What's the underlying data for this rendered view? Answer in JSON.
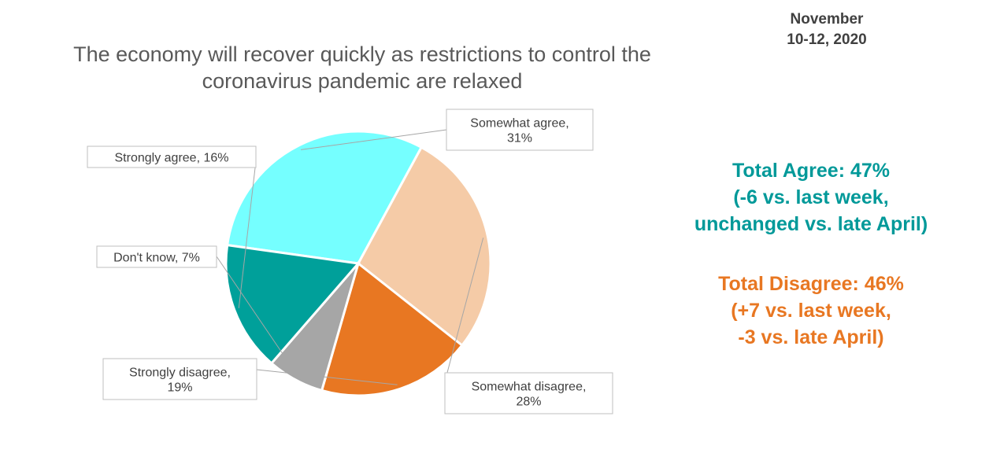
{
  "date": {
    "line1": "November",
    "line2": "10-12, 2020"
  },
  "title": {
    "line1": "The economy will recover quickly as restrictions to control the",
    "line2": "coronavirus pandemic are relaxed"
  },
  "chart_data": {
    "type": "pie",
    "slices": [
      {
        "label": "Somewhat agree",
        "value": 31,
        "color": "#75FFFF",
        "lines": [
          "Somewhat agree,",
          "31%"
        ]
      },
      {
        "label": "Somewhat disagree",
        "value": 28,
        "color": "#F5CBA7",
        "lines": [
          "Somewhat disagree,",
          "28%"
        ]
      },
      {
        "label": "Strongly disagree",
        "value": 19,
        "color": "#E87722",
        "lines": [
          "Strongly disagree,",
          "19%"
        ]
      },
      {
        "label": "Don't know",
        "value": 7,
        "color": "#A6A6A6",
        "lines": [
          "Don't know, 7%"
        ]
      },
      {
        "label": "Strongly agree",
        "value": 16,
        "color": "#00A09A",
        "lines": [
          "Strongly agree, 16%"
        ]
      }
    ]
  },
  "summary": {
    "agree": {
      "line1": "Total Agree:  47%",
      "line2": "(-6 vs. last week,",
      "line3": "unchanged vs. late April)",
      "color": "#009999"
    },
    "disagree": {
      "line1": "Total Disagree: 46%",
      "line2": "(+7 vs. last week,",
      "line3": "-3 vs. late April)",
      "color": "#E87722"
    }
  }
}
